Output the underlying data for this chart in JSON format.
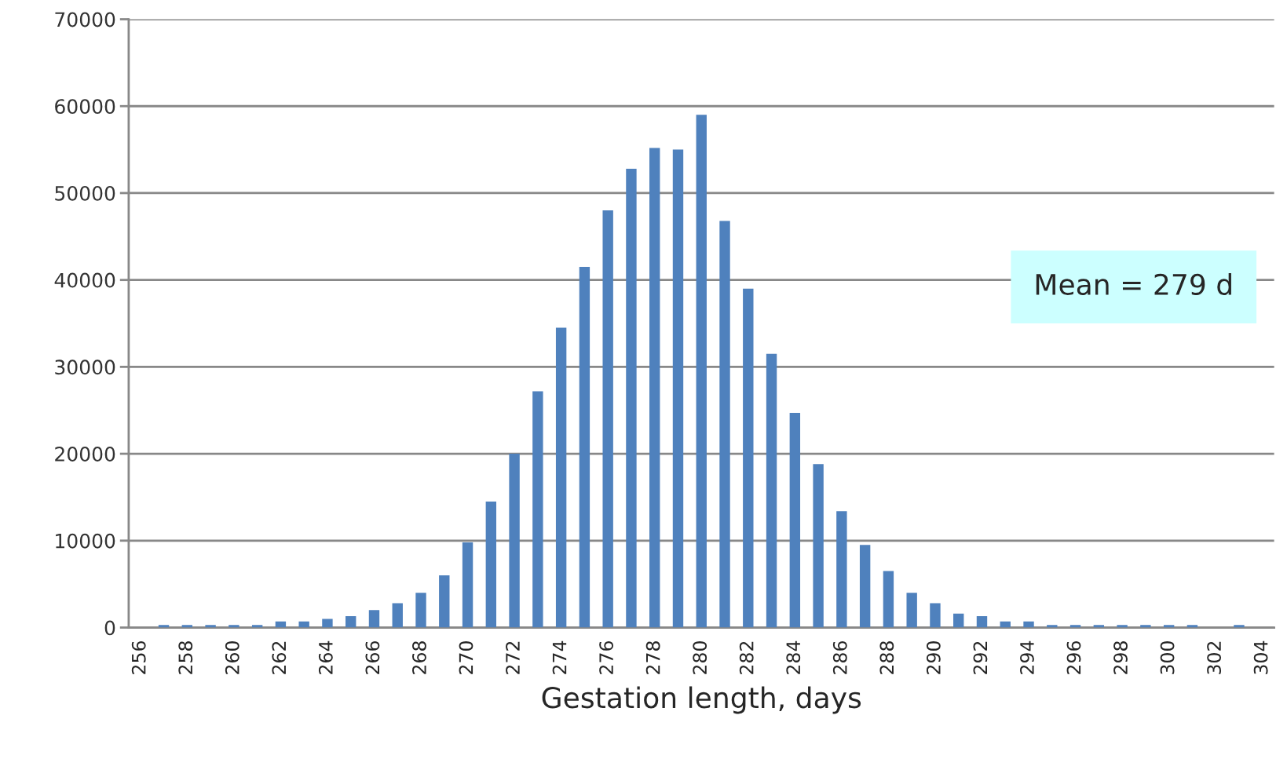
{
  "chart_data": {
    "type": "bar",
    "xlabel": "Gestation length, days",
    "categories": [
      "256",
      null,
      "258",
      null,
      "260",
      null,
      "262",
      null,
      "264",
      null,
      "266",
      null,
      "268",
      null,
      "270",
      null,
      "272",
      null,
      "274",
      null,
      "276",
      null,
      "278",
      null,
      "280",
      null,
      "282",
      null,
      "284",
      null,
      "286",
      null,
      "288",
      null,
      "290",
      null,
      "292",
      null,
      "294",
      null,
      "296",
      null,
      "298",
      null,
      "300",
      null,
      "302",
      null,
      "304"
    ],
    "values": [
      null,
      300,
      300,
      300,
      300,
      300,
      700,
      700,
      1000,
      1300,
      2000,
      2800,
      4000,
      6000,
      9800,
      14500,
      20000,
      27200,
      34500,
      41500,
      48000,
      52800,
      55200,
      55000,
      59000,
      46800,
      39000,
      31500,
      24700,
      18800,
      13400,
      9500,
      6500,
      4000,
      2800,
      1600,
      1300,
      700,
      700,
      300,
      300,
      300,
      300,
      300,
      300,
      300,
      null,
      300,
      null
    ],
    "color": "#4f81bd",
    "ylim": [
      0,
      70000
    ],
    "yticks": [
      0,
      10000,
      20000,
      30000,
      40000,
      50000,
      60000,
      70000
    ],
    "grid": "y",
    "annotations": [
      "Mean = 279 d"
    ]
  }
}
